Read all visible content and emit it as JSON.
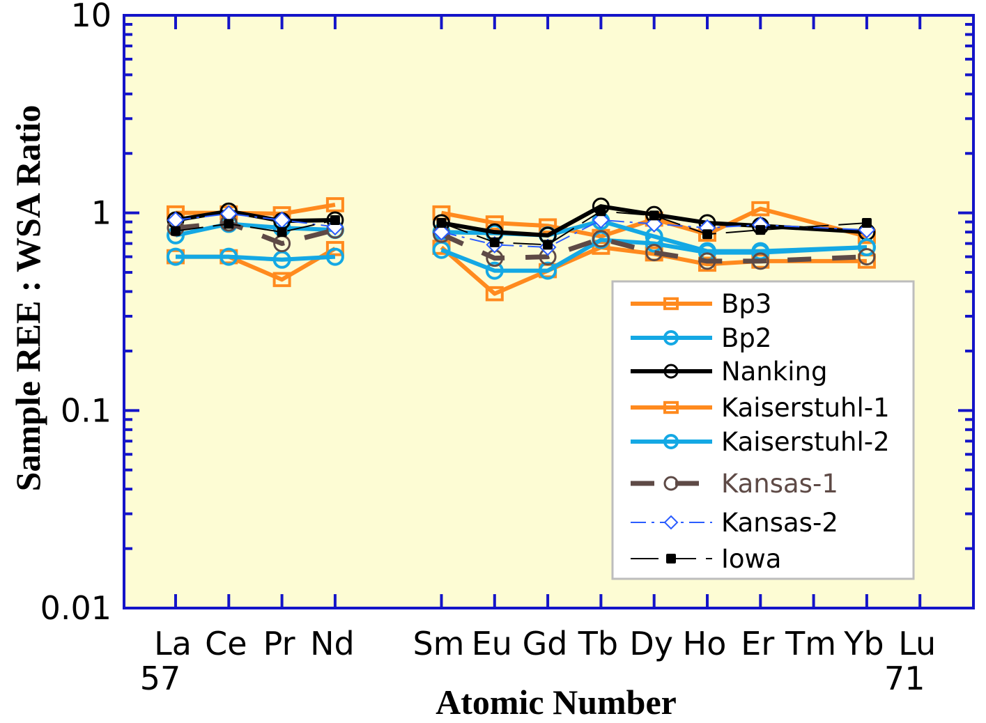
{
  "chart_data": {
    "type": "line",
    "xlabel": "Atomic Number",
    "ylabel": "Sample REE : WSA Ratio",
    "yscale": "log",
    "ylim": [
      0.01,
      10
    ],
    "y_ticks": [
      "0.01",
      "0.1",
      "1",
      "10"
    ],
    "categories": [
      "La",
      "Ce",
      "Pr",
      "Nd",
      "Sm",
      "Eu",
      "Gd",
      "Tb",
      "Dy",
      "Ho",
      "Er",
      "Tm",
      "Yb",
      "Lu"
    ],
    "atomic_numbers": [
      57,
      58,
      59,
      60,
      62,
      63,
      64,
      65,
      66,
      67,
      68,
      69,
      70,
      71
    ],
    "x_sub_labels": {
      "La": "57",
      "Lu": "71"
    },
    "grid": false,
    "legend_position": "bottom-right",
    "colors": {
      "plot_bg": "#fdfcd4",
      "axis": "#1414c8",
      "orange": "#ff8a1e",
      "cyan": "#14a8e4",
      "black": "#000000",
      "brown": "#5e4a46",
      "blue": "#2a5cff"
    },
    "series": [
      {
        "name": "Bp3",
        "color": "#ff8a1e",
        "marker": "square",
        "dash": "solid",
        "values": {
          "La": 1.0,
          "Ce": 1.0,
          "Pr": 0.99,
          "Nd": 1.1,
          "Sm": 1.0,
          "Eu": 0.89,
          "Gd": 0.86,
          "Tb": 0.76,
          "Dy": 0.93,
          "Ho": 0.78,
          "Er": 1.05,
          "Yb": 0.76
        }
      },
      {
        "name": "Bp2",
        "color": "#14a8e4",
        "marker": "circle",
        "dash": "solid",
        "values": {
          "La": 0.77,
          "Ce": 0.88,
          "Pr": 0.84,
          "Nd": 0.82,
          "Sm": 0.8,
          "Eu": 0.79,
          "Gd": 0.77,
          "Tb": 0.91,
          "Dy": 0.76,
          "Ho": 0.64,
          "Er": 0.64,
          "Yb": 0.67
        }
      },
      {
        "name": "Nanking",
        "color": "#000000",
        "marker": "open-circle",
        "dash": "solid",
        "values": {
          "La": 0.92,
          "Ce": 1.02,
          "Pr": 0.91,
          "Nd": 0.92,
          "Sm": 0.89,
          "Eu": 0.8,
          "Gd": 0.77,
          "Tb": 1.08,
          "Dy": 0.98,
          "Ho": 0.89,
          "Er": 0.86,
          "Yb": 0.8
        }
      },
      {
        "name": "Kaiserstuhl-1",
        "color": "#ff8a1e",
        "marker": "square",
        "dash": "solid",
        "values": {
          "La": 0.6,
          "Ce": 0.6,
          "Pr": 0.46,
          "Nd": 0.66,
          "Sm": 0.67,
          "Eu": 0.39,
          "Gd": 0.51,
          "Tb": 0.67,
          "Dy": 0.62,
          "Ho": 0.55,
          "Er": 0.57,
          "Yb": 0.57
        }
      },
      {
        "name": "Kaiserstuhl-2",
        "color": "#14a8e4",
        "marker": "circle",
        "dash": "solid",
        "values": {
          "La": 0.6,
          "Ce": 0.6,
          "Pr": 0.58,
          "Nd": 0.6,
          "Sm": 0.65,
          "Eu": 0.51,
          "Gd": 0.51,
          "Tb": 0.73,
          "Dy": 0.7,
          "Ho": 0.63,
          "Er": 0.63,
          "Yb": 0.67
        }
      },
      {
        "name": "Kansas-1",
        "color": "#5e4a46",
        "marker": "open-circle",
        "dash": "dashed",
        "values": {
          "La": 0.84,
          "Ce": 0.89,
          "Pr": 0.7,
          "Nd": 0.82,
          "Sm": 0.78,
          "Eu": 0.59,
          "Gd": 0.6,
          "Tb": 0.74,
          "Dy": 0.63,
          "Ho": 0.57,
          "Er": 0.57,
          "Yb": 0.6
        }
      },
      {
        "name": "Kansas-2",
        "color": "#2a5cff",
        "marker": "open-diamond",
        "dash": "dash-dot",
        "values": {
          "La": 0.92,
          "Ce": 0.99,
          "Pr": 0.92,
          "Nd": 0.85,
          "Sm": 0.8,
          "Eu": 0.69,
          "Gd": 0.67,
          "Tb": 0.92,
          "Dy": 0.88,
          "Ho": 0.84,
          "Er": 0.87,
          "Yb": 0.82
        }
      },
      {
        "name": "Iowa",
        "color": "#000000",
        "marker": "filled-square",
        "dash": "long-dash",
        "values": {
          "La": 0.81,
          "Ce": 0.88,
          "Pr": 0.8,
          "Nd": 0.92,
          "Sm": 0.89,
          "Eu": 0.71,
          "Gd": 0.69,
          "Tb": 1.02,
          "Dy": 0.97,
          "Ho": 0.78,
          "Er": 0.82,
          "Yb": 0.89
        }
      }
    ]
  }
}
